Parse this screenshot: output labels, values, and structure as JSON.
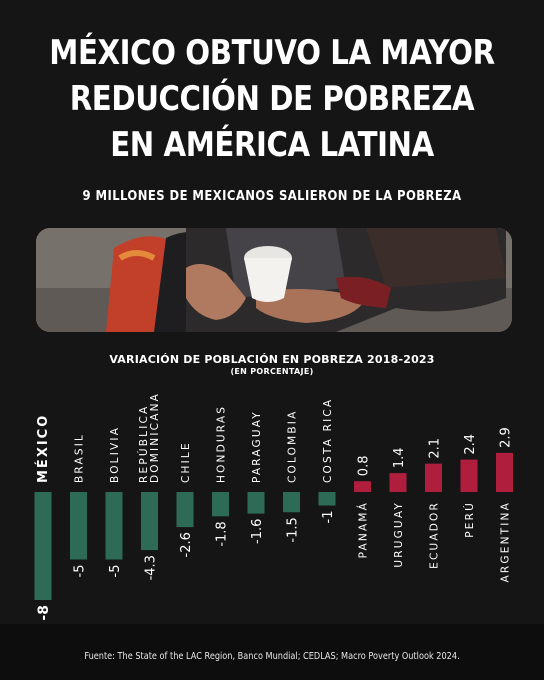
{
  "headline": {
    "line1": "MÉXICO OBTUVO LA MAYOR",
    "line2": "REDUCCIÓN DE POBREZA",
    "line3": "EN AMÉRICA LATINA"
  },
  "subtitle": "9 MILLONES DE MEXICANOS SALIERON DE LA POBREZA",
  "footer": "Fuente: The State of the LAC Region, Banco Mundial; CEDLAS; Macro Poverty Outlook 2024.",
  "colors": {
    "background": "#151515",
    "negative": "#2e6b56",
    "positive": "#b01e3e"
  },
  "chart_data": {
    "type": "bar",
    "title": "VARIACIÓN DE POBLACIÓN EN POBREZA 2018-2023",
    "subtitle": "(EN PORCENTAJE)",
    "categories": [
      "MÉXICO",
      "BRASIL",
      "BOLIVIA",
      "REPÚBLICA DOMINICANA",
      "CHILE",
      "HONDURAS",
      "PARAGUAY",
      "COLOMBIA",
      "COSTA RICA",
      "PANAMÁ",
      "URUGUAY",
      "ECUADOR",
      "PERÚ",
      "ARGENTINA"
    ],
    "category_lines": [
      [
        "MÉXICO"
      ],
      [
        "BRASIL"
      ],
      [
        "BOLIVIA"
      ],
      [
        "REPÚBLICA",
        "DOMINICANA"
      ],
      [
        "CHILE"
      ],
      [
        "HONDURAS"
      ],
      [
        "PARAGUAY"
      ],
      [
        "COLOMBIA"
      ],
      [
        "COSTA RICA"
      ],
      [
        "PANAMÁ"
      ],
      [
        "URUGUAY"
      ],
      [
        "ECUADOR"
      ],
      [
        "PERÚ"
      ],
      [
        "ARGENTINA"
      ]
    ],
    "values": [
      -8,
      -5,
      -5,
      -4.3,
      -2.6,
      -1.8,
      -1.6,
      -1.5,
      -1,
      0.8,
      1.4,
      2.1,
      2.4,
      2.9
    ],
    "value_labels": [
      "-8",
      "-5",
      "-5",
      "-4.3",
      "-2.6",
      "-1.8",
      "-1.6",
      "-1.5",
      "-1",
      "0.8",
      "1.4",
      "2.1",
      "2.4",
      "2.9"
    ],
    "highlight": "MÉXICO",
    "xlabel": "",
    "ylabel": ""
  }
}
